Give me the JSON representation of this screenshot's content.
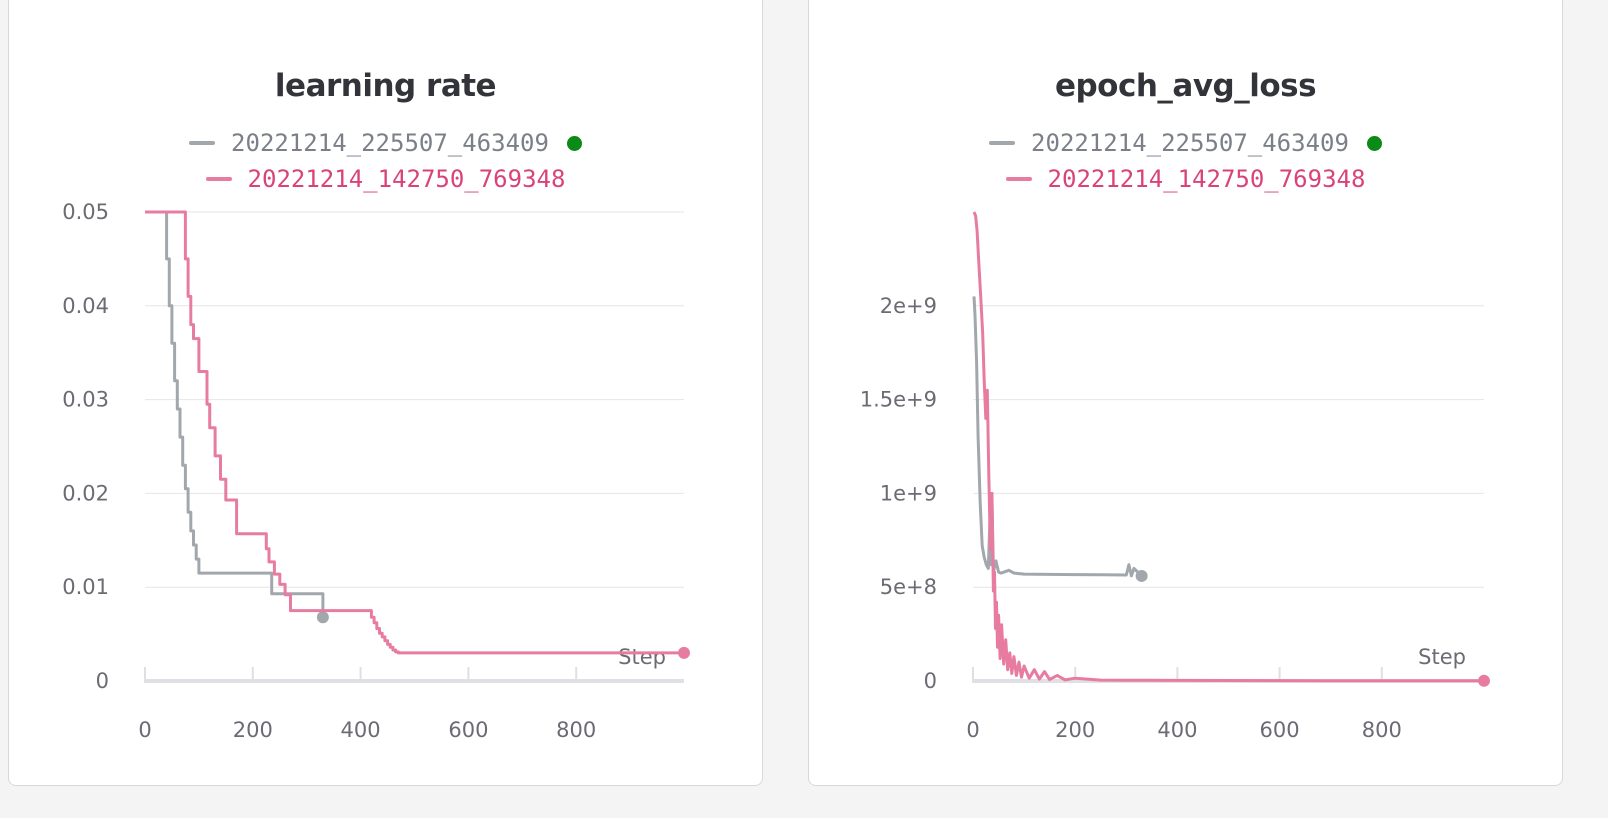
{
  "chart_data": [
    {
      "type": "line",
      "title": "learning rate",
      "xlabel": "Step",
      "ylabel": "",
      "xlim": [
        0,
        1000
      ],
      "ylim": [
        0,
        0.05
      ],
      "x_ticks": [
        0,
        200,
        400,
        600,
        800
      ],
      "x_tick_labels": [
        "0",
        "200",
        "400",
        "600",
        "800"
      ],
      "y_ticks": [
        0,
        0.01,
        0.02,
        0.03,
        0.04,
        0.05
      ],
      "y_tick_labels": [
        "0",
        "0.01",
        "0.02",
        "0.03",
        "0.04",
        "0.05"
      ],
      "grid": true,
      "legend": "top-center",
      "series": [
        {
          "name": "20221214_225507_463409",
          "color": "#a2a7ad",
          "status_dot_color": "#0a8a16",
          "step": true,
          "x": [
            0,
            35,
            40,
            45,
            50,
            55,
            60,
            65,
            70,
            75,
            80,
            85,
            90,
            95,
            100,
            225,
            235,
            320,
            330
          ],
          "y": [
            0.05,
            0.05,
            0.045,
            0.04,
            0.036,
            0.032,
            0.029,
            0.026,
            0.023,
            0.0205,
            0.018,
            0.016,
            0.0145,
            0.013,
            0.0115,
            0.0115,
            0.0093,
            0.0093,
            0.0068
          ]
        },
        {
          "name": "20221214_142750_769348",
          "color": "#e87ca0",
          "step": true,
          "x": [
            0,
            70,
            75,
            80,
            85,
            90,
            100,
            115,
            120,
            130,
            140,
            150,
            170,
            225,
            230,
            240,
            250,
            260,
            270,
            415,
            420,
            425,
            430,
            435,
            440,
            445,
            450,
            455,
            460,
            465,
            470,
            475,
            480,
            485,
            1000
          ],
          "y": [
            0.05,
            0.05,
            0.045,
            0.041,
            0.038,
            0.0365,
            0.033,
            0.0295,
            0.027,
            0.024,
            0.0215,
            0.0193,
            0.0157,
            0.0141,
            0.0127,
            0.0114,
            0.0103,
            0.0092,
            0.0075,
            0.0075,
            0.0068,
            0.0062,
            0.0056,
            0.0051,
            0.0047,
            0.0043,
            0.0039,
            0.0036,
            0.0033,
            0.0031,
            0.003,
            0.003,
            0.003,
            0.003,
            0.003
          ]
        }
      ]
    },
    {
      "type": "line",
      "title": "epoch_avg_loss",
      "xlabel": "Step",
      "ylabel": "",
      "xlim": [
        0,
        1000
      ],
      "ylim": [
        0,
        2500000000
      ],
      "x_ticks": [
        0,
        200,
        400,
        600,
        800
      ],
      "x_tick_labels": [
        "0",
        "200",
        "400",
        "600",
        "800"
      ],
      "y_ticks": [
        0,
        500000000,
        1000000000,
        1500000000,
        2000000000
      ],
      "y_tick_labels": [
        "0",
        "5e+8",
        "1e+9",
        "1.5e+9",
        "2e+9"
      ],
      "grid": true,
      "legend": "top-center",
      "series": [
        {
          "name": "20221214_225507_463409",
          "color": "#a2a7ad",
          "status_dot_color": "#0a8a16",
          "step": false,
          "x": [
            2,
            4,
            7,
            10,
            14,
            18,
            22,
            26,
            30,
            33,
            35,
            37,
            40,
            45,
            50,
            55,
            60,
            70,
            80,
            100,
            150,
            200,
            250,
            300,
            305,
            310,
            315,
            330
          ],
          "y": [
            2050000000,
            1950000000,
            1700000000,
            1300000000,
            950000000,
            720000000,
            660000000,
            620000000,
            600000000,
            850000000,
            620000000,
            1000000000,
            580000000,
            640000000,
            580000000,
            575000000,
            580000000,
            590000000,
            575000000,
            570000000,
            568000000,
            567000000,
            566000000,
            565000000,
            620000000,
            560000000,
            600000000,
            560000000
          ]
        },
        {
          "name": "20221214_142750_769348",
          "color": "#e87ca0",
          "step": false,
          "x": [
            2,
            5,
            8,
            11,
            15,
            19,
            22,
            25,
            28,
            31,
            34,
            37,
            40,
            42,
            44,
            46,
            48,
            50,
            53,
            56,
            60,
            64,
            68,
            72,
            76,
            80,
            85,
            90,
            95,
            100,
            110,
            120,
            130,
            140,
            150,
            165,
            180,
            200,
            250,
            300,
            400,
            500,
            600,
            700,
            800,
            900,
            1000
          ],
          "y": [
            2500000000,
            2480000000,
            2400000000,
            2250000000,
            2050000000,
            1850000000,
            1600000000,
            1400000000,
            1550000000,
            1100000000,
            700000000,
            1000000000,
            480000000,
            580000000,
            280000000,
            420000000,
            180000000,
            350000000,
            120000000,
            300000000,
            90000000,
            220000000,
            60000000,
            150000000,
            40000000,
            130000000,
            30000000,
            100000000,
            20000000,
            80000000,
            15000000,
            60000000,
            10000000,
            50000000,
            8000000,
            30000000,
            6000000,
            15000000,
            5000000,
            4000000,
            3000000,
            2500000,
            2000000,
            1800000,
            1500000,
            1200000,
            1000000
          ]
        }
      ]
    }
  ]
}
